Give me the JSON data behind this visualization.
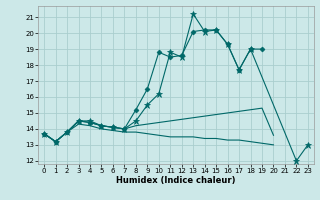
{
  "xlabel": "Humidex (Indice chaleur)",
  "xlim": [
    -0.5,
    23.5
  ],
  "ylim": [
    11.8,
    21.7
  ],
  "yticks": [
    12,
    13,
    14,
    15,
    16,
    17,
    18,
    19,
    20,
    21
  ],
  "xticks": [
    0,
    1,
    2,
    3,
    4,
    5,
    6,
    7,
    8,
    9,
    10,
    11,
    12,
    13,
    14,
    15,
    16,
    17,
    18,
    19,
    20,
    21,
    22,
    23
  ],
  "background_color": "#cce8e8",
  "grid_color": "#aacece",
  "line_color": "#006868",
  "lines": [
    {
      "x": [
        0,
        1,
        2,
        3,
        4,
        5,
        6,
        7,
        8,
        9,
        10,
        11,
        12,
        13,
        14,
        15,
        16,
        17,
        18,
        22,
        23
      ],
      "y": [
        13.7,
        13.2,
        13.8,
        14.5,
        14.5,
        14.2,
        14.1,
        14.0,
        14.5,
        15.5,
        16.2,
        18.8,
        18.5,
        21.2,
        20.1,
        20.2,
        19.3,
        17.7,
        19.0,
        12.0,
        13.0
      ],
      "marker": "*",
      "markersize": 4.5
    },
    {
      "x": [
        0,
        1,
        2,
        3,
        4,
        5,
        6,
        7,
        8,
        9,
        10,
        11,
        12,
        13,
        14,
        15,
        16,
        17,
        18,
        19
      ],
      "y": [
        13.7,
        13.2,
        13.8,
        14.5,
        14.4,
        14.2,
        14.1,
        14.0,
        15.2,
        16.5,
        18.8,
        18.5,
        18.6,
        20.1,
        20.2,
        20.2,
        19.3,
        17.7,
        19.0,
        19.0
      ],
      "marker": "D",
      "markersize": 2.5
    },
    {
      "x": [
        0,
        1,
        2,
        3,
        4,
        5,
        6,
        7,
        8,
        9,
        10,
        11,
        12,
        13,
        14,
        15,
        16,
        17,
        18,
        19,
        20
      ],
      "y": [
        13.7,
        13.2,
        13.8,
        14.5,
        14.4,
        14.2,
        14.1,
        14.0,
        14.2,
        14.3,
        14.4,
        14.5,
        14.6,
        14.7,
        14.8,
        14.9,
        15.0,
        15.1,
        15.2,
        15.3,
        13.6
      ],
      "marker": null,
      "markersize": 0
    },
    {
      "x": [
        0,
        1,
        2,
        3,
        4,
        5,
        6,
        7,
        8,
        9,
        10,
        11,
        12,
        13,
        14,
        15,
        16,
        17,
        18,
        19,
        20
      ],
      "y": [
        13.7,
        13.2,
        13.8,
        14.3,
        14.2,
        14.0,
        13.9,
        13.8,
        13.8,
        13.7,
        13.6,
        13.5,
        13.5,
        13.5,
        13.4,
        13.4,
        13.3,
        13.3,
        13.2,
        13.1,
        13.0
      ],
      "marker": null,
      "markersize": 0
    }
  ]
}
